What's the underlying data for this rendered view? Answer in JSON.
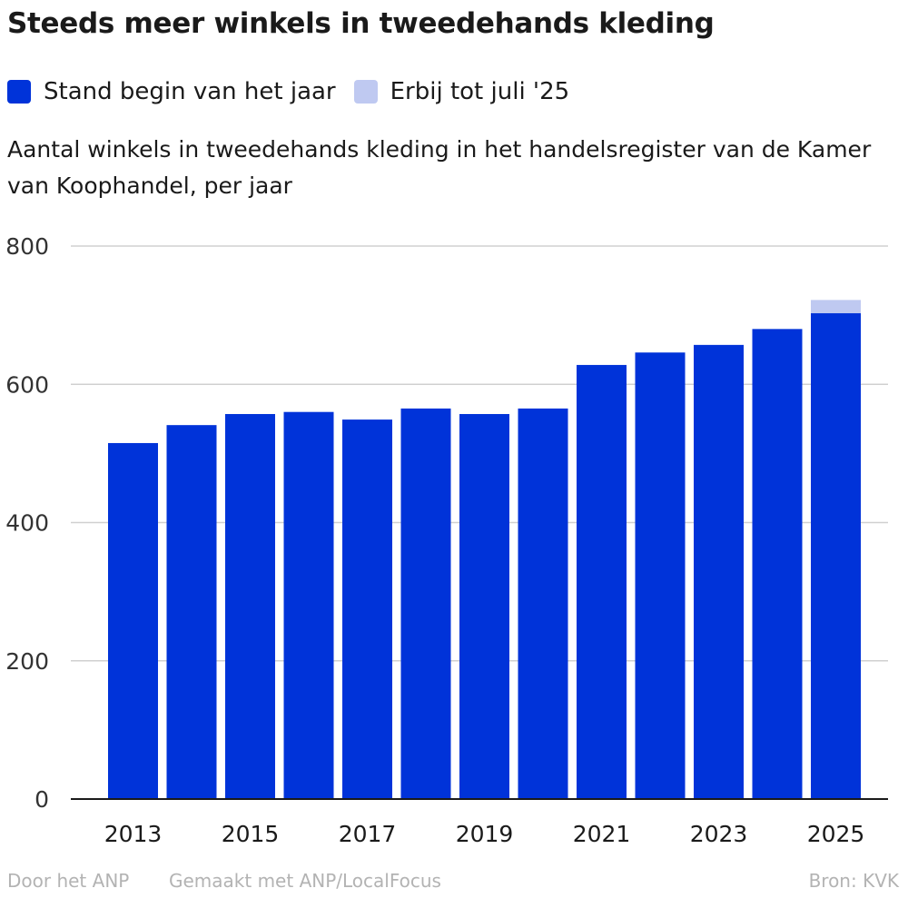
{
  "header": {
    "title": "Steeds meer winkels in tweedehands kleding",
    "subtitle": "Aantal winkels in tweedehands kleding in het handelsregister van de Kamer van Koophandel, per jaar"
  },
  "legend": [
    {
      "label": "Stand begin van het jaar",
      "color": "#0033d9"
    },
    {
      "label": "Erbij tot juli '25",
      "color": "#bfc9f1"
    }
  ],
  "footer": {
    "author": "Door het ANP",
    "made_with": "Gemaakt met ANP/LocalFocus",
    "source": "Bron:  KVK"
  },
  "chart_data": {
    "type": "bar",
    "stacked": true,
    "categories": [
      "2013",
      "2014",
      "2015",
      "2016",
      "2017",
      "2018",
      "2019",
      "2020",
      "2021",
      "2022",
      "2023",
      "2024",
      "2025"
    ],
    "x_tick_labels": [
      "2013",
      "2015",
      "2017",
      "2019",
      "2021",
      "2023",
      "2025"
    ],
    "series": [
      {
        "name": "Stand begin van het jaar",
        "color": "#0033d9",
        "values": [
          515,
          541,
          557,
          560,
          549,
          565,
          557,
          565,
          628,
          646,
          657,
          680,
          703
        ]
      },
      {
        "name": "Erbij tot juli '25",
        "color": "#bfc9f1",
        "values": [
          0,
          0,
          0,
          0,
          0,
          0,
          0,
          0,
          0,
          0,
          0,
          0,
          19
        ]
      }
    ],
    "ylim": [
      0,
      800
    ],
    "yticks": [
      0,
      200,
      400,
      600,
      800
    ],
    "grid": true,
    "legend_position": "top-left"
  }
}
